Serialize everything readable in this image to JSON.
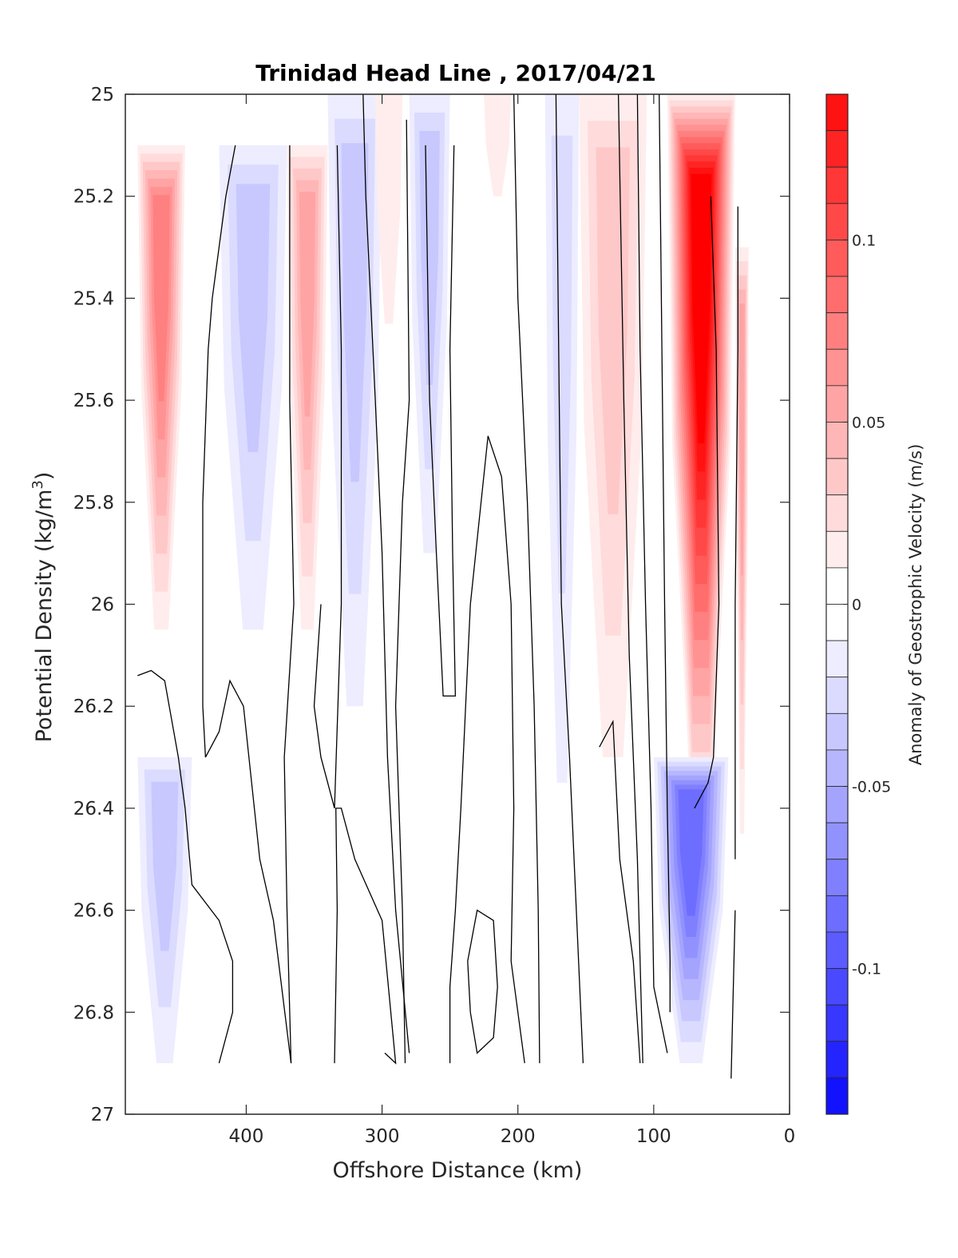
{
  "chart_data": {
    "type": "heatmap",
    "subtype": "filled-contour",
    "title": "Trinidad Head Line , 2017/04/21",
    "xlabel": "Offshore Distance (km)",
    "ylabel": "Potential Density (kg/m",
    "ylabel_superscript": "3",
    "ylabel_suffix": ")",
    "xlim": [
      489,
      0
    ],
    "ylim": [
      25,
      27
    ],
    "x_reversed": true,
    "y_reversed": true,
    "x_ticks": [
      "400",
      "300",
      "200",
      "100",
      "0"
    ],
    "x_tick_values": [
      400,
      300,
      200,
      100,
      0
    ],
    "y_ticks": [
      "25",
      "25.2",
      "25.4",
      "25.6",
      "25.8",
      "26",
      "26.2",
      "26.4",
      "26.6",
      "26.8",
      "27"
    ],
    "y_tick_values": [
      25,
      25.2,
      25.4,
      25.6,
      25.8,
      26,
      26.2,
      26.4,
      26.6,
      26.8,
      27
    ],
    "colorbar": {
      "label": "Anomaly of Geostrophic Velocity (m/s)",
      "range": [
        -0.14,
        0.14
      ],
      "step": 0.01,
      "ticks": [
        "0.1",
        "0.05",
        "0",
        "-0.05",
        "-0.1"
      ],
      "tick_values": [
        0.1,
        0.05,
        0,
        -0.05,
        -0.1
      ],
      "colormap": "blue-white-red",
      "neg_color": "#0000ff",
      "pos_color": "#ff0000",
      "zero_color": "#ffffff"
    },
    "data_extent": {
      "x_km": [
        480,
        30
      ],
      "density": [
        25.1,
        26.9
      ]
    },
    "velocity_bands": [
      {
        "name": "far-offshore-positive",
        "x_km": [
          480,
          445
        ],
        "density": [
          25.1,
          26.05
        ],
        "peak": 0.07
      },
      {
        "name": "far-offshore-negative-deep",
        "x_km": [
          480,
          440
        ],
        "density": [
          26.3,
          26.9
        ],
        "peak": -0.03
      },
      {
        "name": "negative-390km",
        "x_km": [
          420,
          370
        ],
        "density": [
          25.1,
          26.05
        ],
        "peak": -0.03
      },
      {
        "name": "positive-350km",
        "x_km": [
          370,
          340
        ],
        "density": [
          25.1,
          26.05
        ],
        "peak": 0.05
      },
      {
        "name": "negative-320km",
        "x_km": [
          340,
          300
        ],
        "density": [
          25.0,
          26.2
        ],
        "peak": -0.03
      },
      {
        "name": "positive-295km",
        "x_km": [
          305,
          285
        ],
        "density": [
          25.0,
          25.45
        ],
        "peak": 0.01
      },
      {
        "name": "negative-260km",
        "x_km": [
          280,
          250
        ],
        "density": [
          25.0,
          25.9
        ],
        "peak": -0.03
      },
      {
        "name": "positive-215km",
        "x_km": [
          225,
          205
        ],
        "density": [
          25.0,
          25.2
        ],
        "peak": 0.01
      },
      {
        "name": "negative-160km",
        "x_km": [
          180,
          155
        ],
        "density": [
          25.0,
          26.35
        ],
        "peak": -0.02
      },
      {
        "name": "positive-130km",
        "x_km": [
          155,
          105
        ],
        "density": [
          25.0,
          26.3
        ],
        "peak": 0.03
      },
      {
        "name": "coastal-jet-positive",
        "x_km": [
          90,
          40
        ],
        "density": [
          25.0,
          26.4
        ],
        "peak": 0.14
      },
      {
        "name": "coastal-negative-deep",
        "x_km": [
          100,
          45
        ],
        "density": [
          26.3,
          26.9
        ],
        "peak": -0.08
      },
      {
        "name": "nearshore-positive",
        "x_km": [
          40,
          30
        ],
        "density": [
          25.3,
          26.45
        ],
        "peak": 0.05
      }
    ]
  }
}
